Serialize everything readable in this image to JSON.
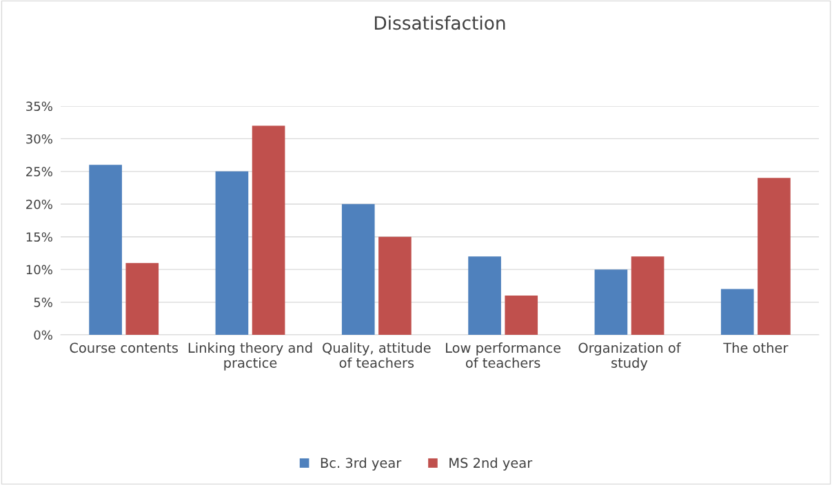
{
  "chart_data": {
    "type": "bar",
    "title": "Dissatisfaction",
    "categories": [
      "Course contents",
      "Linking theory and\npractice",
      "Quality, attitude\nof teachers",
      "Low performance\nof teachers",
      "Organization of\nstudy",
      "The other"
    ],
    "series": [
      {
        "name": "Bc. 3rd year",
        "color": "#4f81bd",
        "values": [
          26,
          25,
          20,
          12,
          10,
          7
        ]
      },
      {
        "name": "MS 2nd year",
        "color": "#c0504d",
        "values": [
          11,
          32,
          15,
          6,
          12,
          24
        ]
      }
    ],
    "ylim": [
      0,
      35
    ],
    "yticks": [
      {
        "value": 0,
        "label": "0%"
      },
      {
        "value": 5,
        "label": "5%"
      },
      {
        "value": 10,
        "label": "10%"
      },
      {
        "value": 15,
        "label": "15%"
      },
      {
        "value": 20,
        "label": "20%"
      },
      {
        "value": 25,
        "label": "25%"
      },
      {
        "value": 30,
        "label": "30%"
      },
      {
        "value": 35,
        "label": "35%"
      }
    ],
    "grid": "y",
    "legend": "bottom"
  }
}
